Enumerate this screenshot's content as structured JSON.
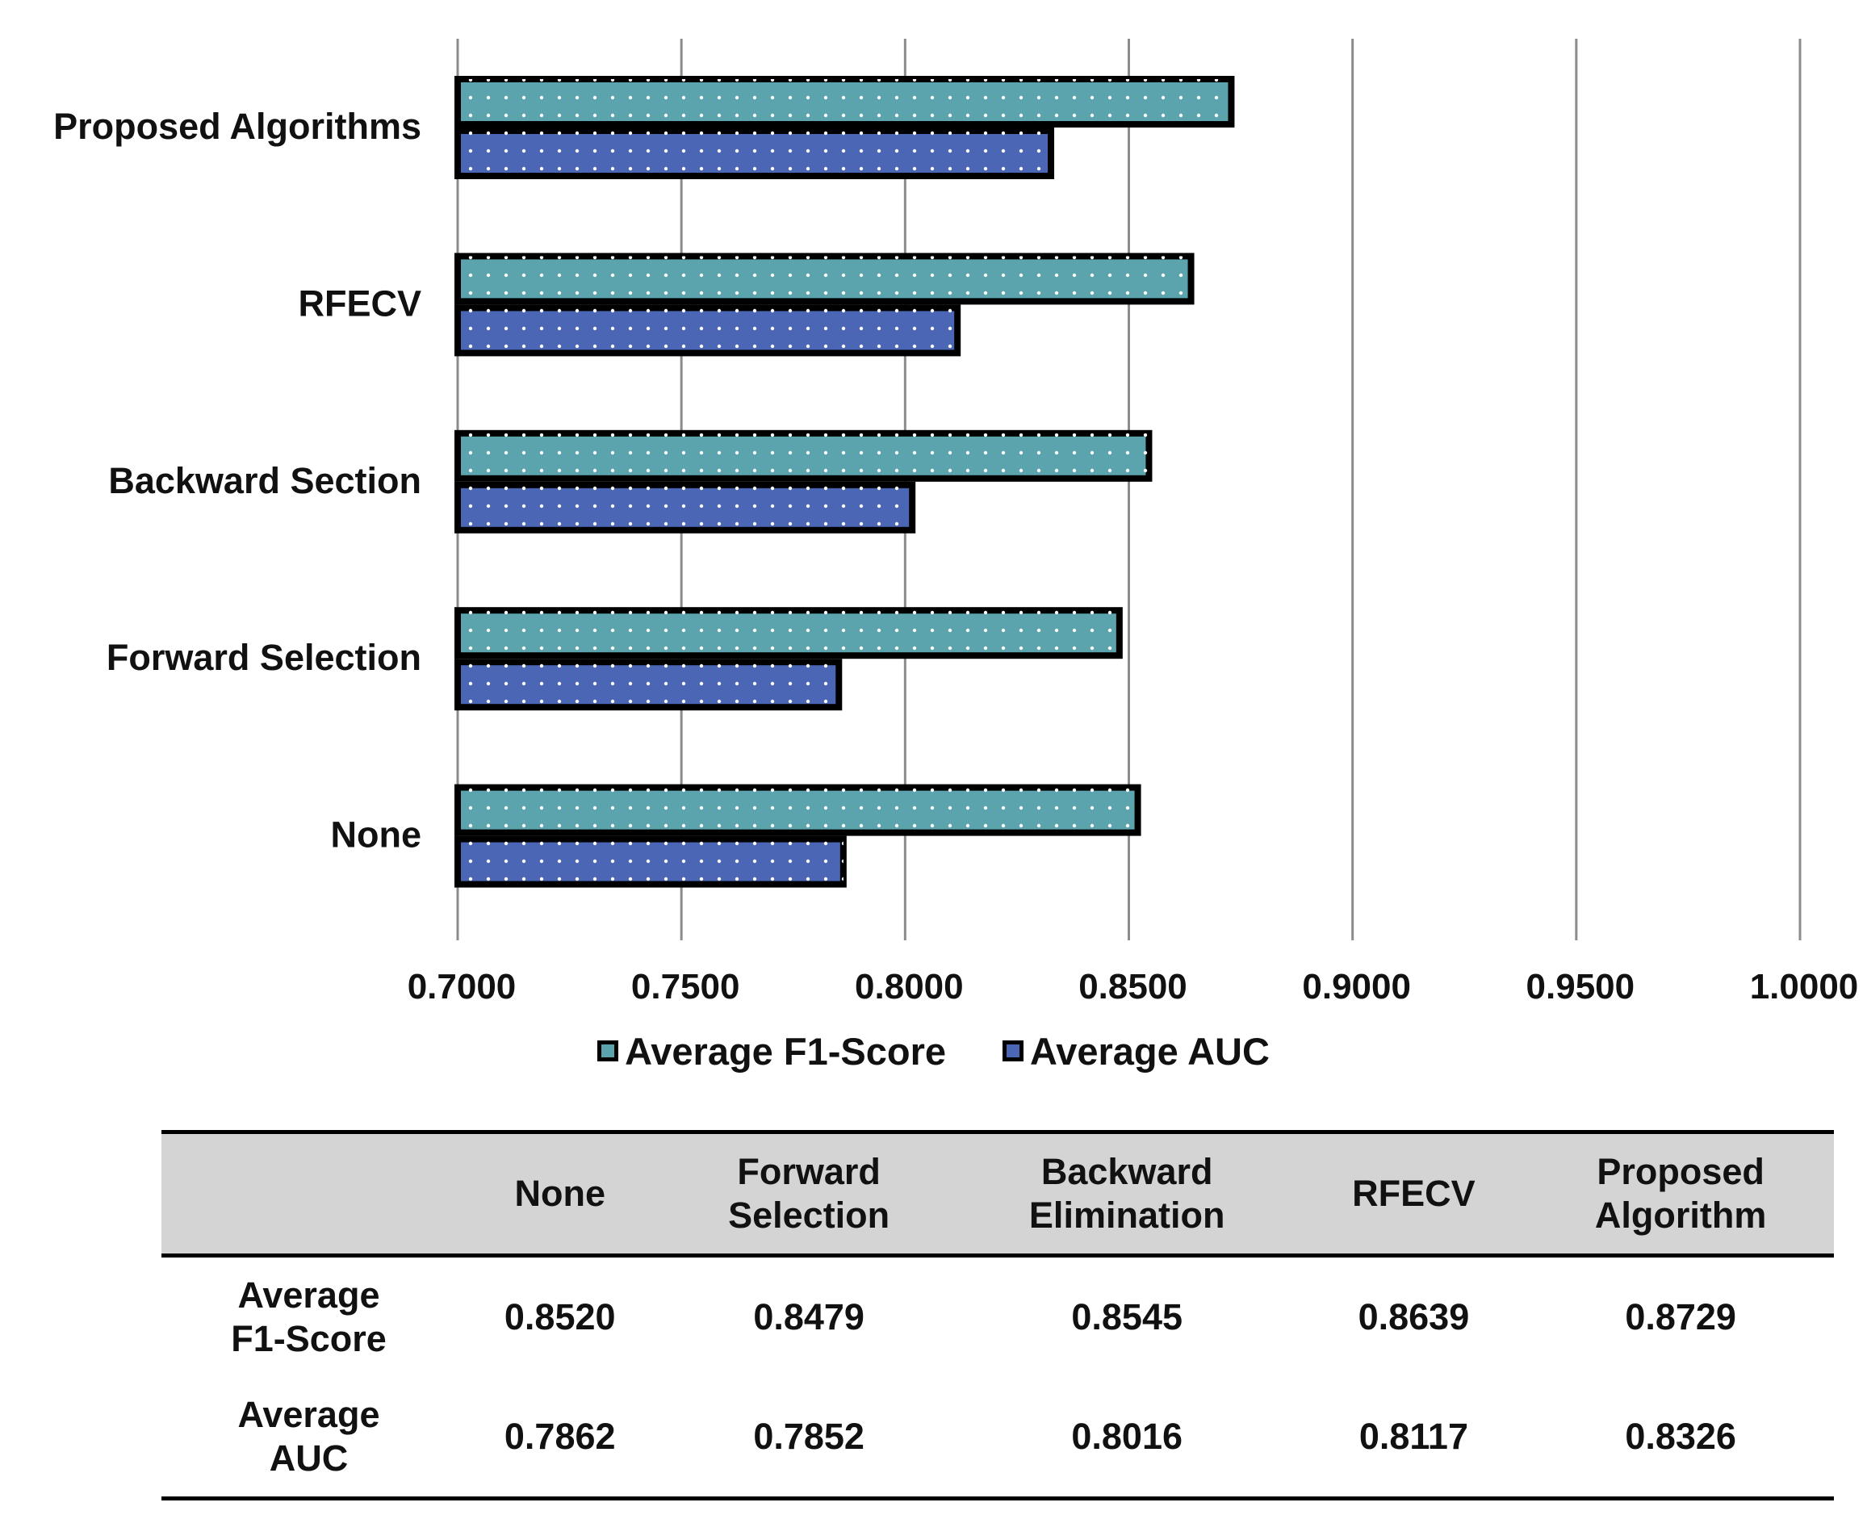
{
  "chart_data": {
    "type": "bar",
    "orientation": "horizontal",
    "categories": [
      "Proposed Algorithms",
      "RFECV",
      "Backward Section",
      "Forward Selection",
      "None"
    ],
    "series": [
      {
        "name": "Average F1-Score",
        "color": "#5BA3AD",
        "values": [
          0.8729,
          0.8639,
          0.8545,
          0.8479,
          0.852
        ]
      },
      {
        "name": "Average AUC",
        "color": "#4A66B5",
        "values": [
          0.8326,
          0.8117,
          0.8016,
          0.7852,
          0.7862
        ]
      }
    ],
    "xlim": [
      0.7,
      1.0
    ],
    "xticks": [
      "0.7000",
      "0.7500",
      "0.8000",
      "0.8500",
      "0.9000",
      "0.9500",
      "1.0000"
    ],
    "grid": "vertical",
    "legend": "bottom"
  },
  "legend": {
    "f1_label": "Average F1-Score",
    "auc_label": "Average AUC"
  },
  "table": {
    "headers": [
      "",
      "None",
      "Forward\nSelection",
      "Backward\nElimination",
      "RFECV",
      "Proposed\nAlgorithm"
    ],
    "rows": [
      {
        "label": "Average\nF1-Score",
        "values": [
          "0.8520",
          "0.8479",
          "0.8545",
          "0.8639",
          "0.8729"
        ]
      },
      {
        "label": "Average\nAUC",
        "values": [
          "0.7862",
          "0.7852",
          "0.8016",
          "0.8117",
          "0.8326"
        ]
      }
    ]
  }
}
